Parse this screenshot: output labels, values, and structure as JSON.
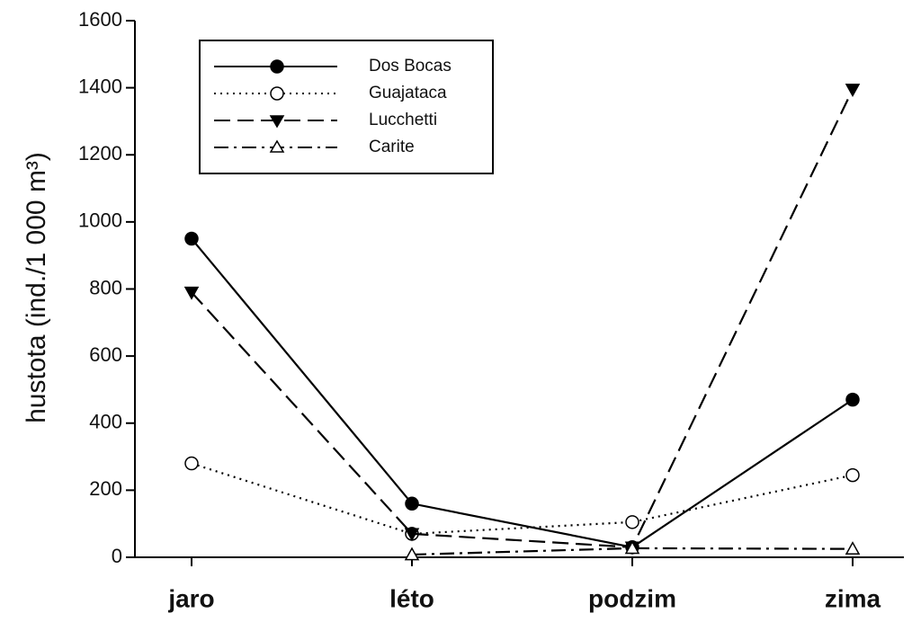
{
  "chart_data": {
    "type": "line",
    "y_label": "hustota (ind./1 000 m³)",
    "categories": [
      "jaro",
      "léto",
      "podzim",
      "zima"
    ],
    "ylim": [
      0,
      1600
    ],
    "yticks": [
      0,
      200,
      400,
      600,
      800,
      1000,
      1200,
      1400,
      1600
    ],
    "legend": "top-left",
    "series": [
      {
        "name": "Dos Bocas",
        "color": "#000000",
        "dash": "solid",
        "marker": "filled-circle",
        "values": [
          950,
          160,
          30,
          470
        ]
      },
      {
        "name": "Guajataca",
        "color": "#000000",
        "dash": "dotted",
        "marker": "open-circle",
        "values": [
          280,
          70,
          105,
          245
        ]
      },
      {
        "name": "Lucchetti",
        "color": "#000000",
        "dash": "dashed",
        "marker": "filled-triangle-down",
        "values": [
          790,
          70,
          30,
          1395
        ]
      },
      {
        "name": "Carite",
        "color": "#000000",
        "dash": "dash-dot",
        "marker": "open-triangle-up",
        "values": [
          null,
          8,
          27,
          25
        ]
      }
    ]
  }
}
